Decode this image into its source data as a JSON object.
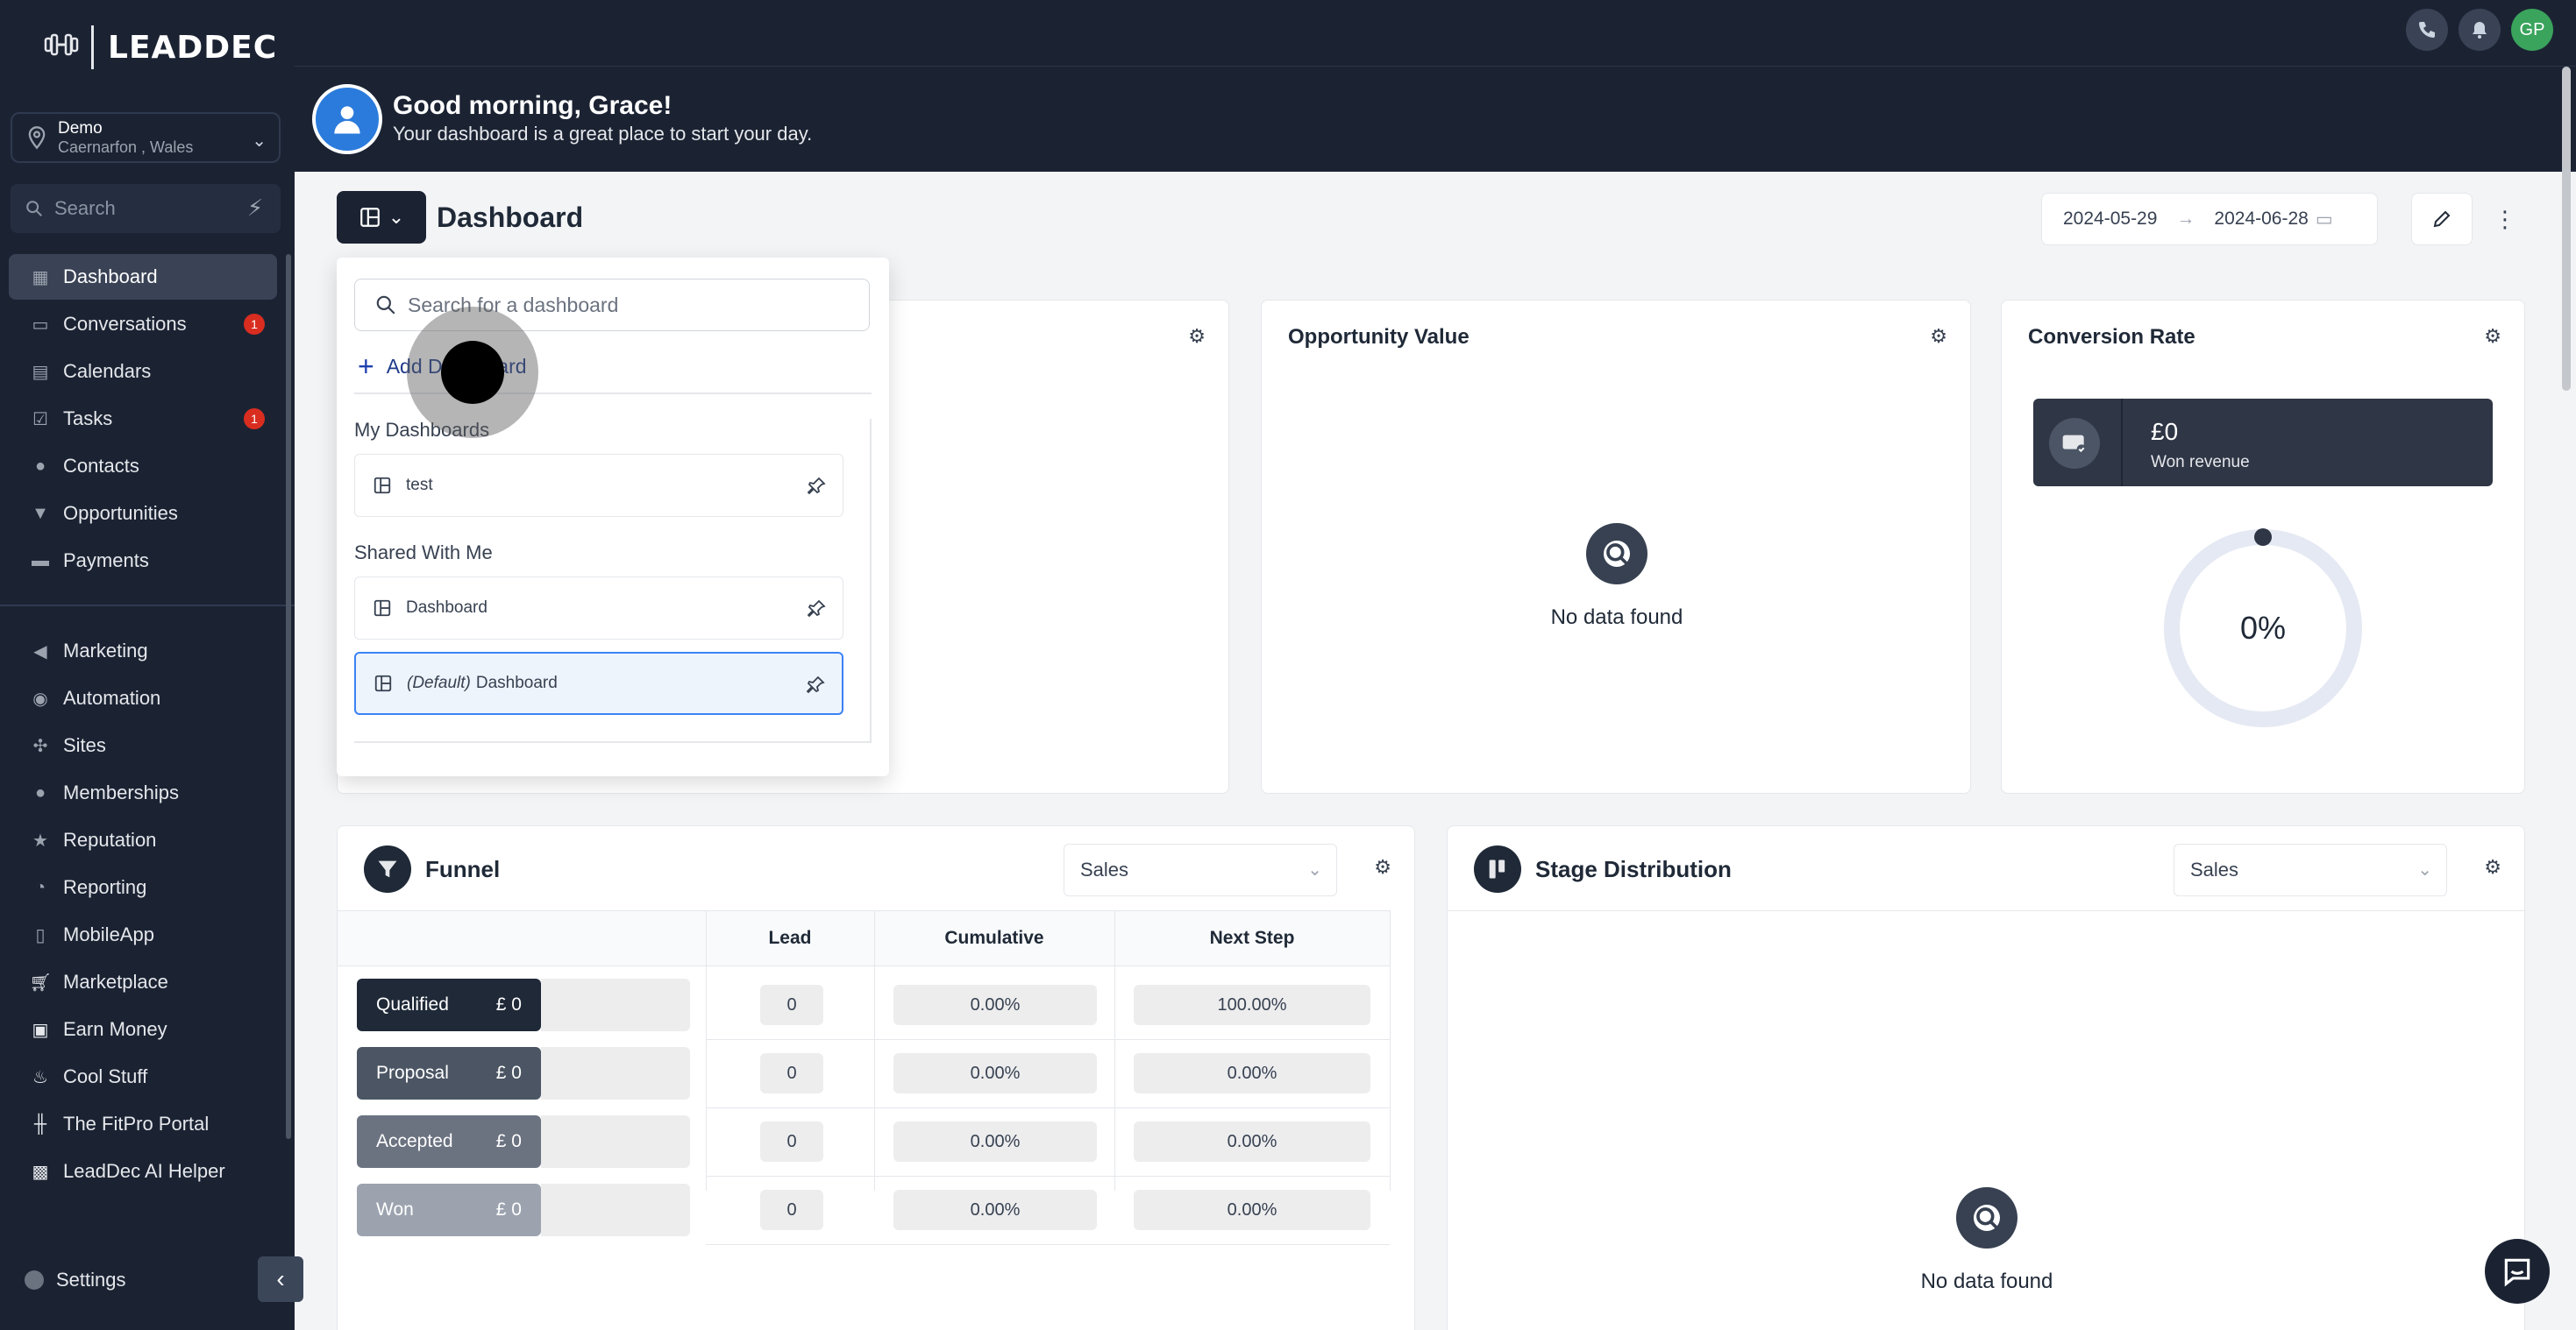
{
  "sidebar": {
    "logo": "LEADDEC",
    "location": {
      "name": "Demo",
      "place": "Caernarfon , Wales"
    },
    "search_placeholder": "Search",
    "items": [
      {
        "label": "Dashboard",
        "icon": "dashboard-icon",
        "active": true
      },
      {
        "label": "Conversations",
        "icon": "chat-icon",
        "badge": "1"
      },
      {
        "label": "Calendars",
        "icon": "calendar-icon"
      },
      {
        "label": "Tasks",
        "icon": "checkbox-icon",
        "badge": "1"
      },
      {
        "label": "Contacts",
        "icon": "person-icon"
      },
      {
        "label": "Opportunities",
        "icon": "funnel-icon"
      },
      {
        "label": "Payments",
        "icon": "card-icon"
      },
      {
        "label": "Marketing",
        "icon": "megaphone-icon"
      },
      {
        "label": "Automation",
        "icon": "automation-icon"
      },
      {
        "label": "Sites",
        "icon": "sitemap-icon"
      },
      {
        "label": "Memberships",
        "icon": "people-icon"
      },
      {
        "label": "Reputation",
        "icon": "star-icon"
      },
      {
        "label": "Reporting",
        "icon": "pie-icon"
      },
      {
        "label": "MobileApp",
        "icon": "phone-icon"
      },
      {
        "label": "Marketplace",
        "icon": "cart-icon"
      },
      {
        "label": "Earn Money",
        "icon": "money-icon"
      },
      {
        "label": "Cool Stuff",
        "icon": "flame-icon"
      },
      {
        "label": "The FitPro Portal",
        "icon": "dumbbell-icon"
      },
      {
        "label": "LeadDec AI Helper",
        "icon": "robot-icon"
      }
    ],
    "settings_label": "Settings"
  },
  "header": {
    "avatar_initials": "GP",
    "greeting": "Good morning, Grace!",
    "subgreeting": "Your dashboard is a great place to start your day."
  },
  "page": {
    "title": "Dashboard",
    "date_from": "2024-05-29",
    "date_to": "2024-06-28"
  },
  "dropdown": {
    "search_placeholder": "Search for a dashboard",
    "add_label": "Add Dashboard",
    "my_title": "My Dashboards",
    "my_items": [
      "test"
    ],
    "shared_title": "Shared With Me",
    "shared_items": [
      "Dashboard"
    ],
    "default_prefix": "(Default)",
    "default_name": "Dashboard"
  },
  "cards": {
    "opportunity": {
      "title": "Opportunity Value",
      "empty": "No data found"
    },
    "conversion": {
      "title": "Conversion Rate",
      "revenue_value": "£0",
      "revenue_label": "Won revenue",
      "rate": "0%",
      "rate_fraction": 0
    },
    "funnel": {
      "title": "Funnel",
      "pipeline": "Sales",
      "headers": [
        "Lead",
        "Cumulative",
        "Next Step"
      ],
      "rows": [
        {
          "stage": "Qualified",
          "amount": "£ 0",
          "lead": "0",
          "cumulative": "0.00%",
          "next": "100.00%",
          "color": "#1f2937"
        },
        {
          "stage": "Proposal",
          "amount": "£ 0",
          "lead": "0",
          "cumulative": "0.00%",
          "next": "0.00%",
          "color": "#4b5563"
        },
        {
          "stage": "Accepted",
          "amount": "£ 0",
          "lead": "0",
          "cumulative": "0.00%",
          "next": "0.00%",
          "color": "#6b7280"
        },
        {
          "stage": "Won",
          "amount": "£ 0",
          "lead": "0",
          "cumulative": "0.00%",
          "next": "0.00%",
          "color": "#9ca3af"
        }
      ]
    },
    "stage": {
      "title": "Stage Distribution",
      "pipeline": "Sales",
      "empty": "No data found"
    }
  }
}
